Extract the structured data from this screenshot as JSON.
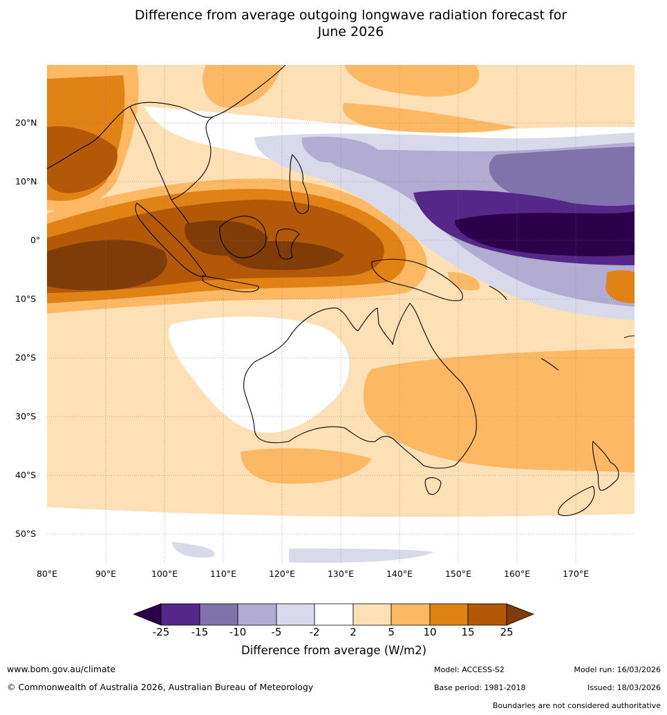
{
  "title": {
    "line1": "Difference from average outgoing longwave radiation forecast for",
    "line2": "June 2026"
  },
  "map": {
    "lat_labels": [
      "20°N",
      "10°N",
      "0°",
      "10°S",
      "20°S",
      "30°S",
      "40°S",
      "50°S"
    ],
    "lon_labels": [
      "80°E",
      "90°E",
      "100°E",
      "110°E",
      "120°E",
      "130°E",
      "140°E",
      "150°E",
      "160°E",
      "170°E"
    ]
  },
  "colorbar": {
    "ticks": [
      "-25",
      "-15",
      "-10",
      "-5",
      "-2",
      "2",
      "5",
      "10",
      "15",
      "25"
    ],
    "colors": {
      "lt_minus25": "#2d004b",
      "m25_m15": "#542788",
      "m15_m10": "#8073ac",
      "m10_m5": "#b2abd2",
      "m5_m2": "#d8daeb",
      "m2_2": "#ffffff",
      "p2_5": "#fee0b6",
      "p5_10": "#fdb863",
      "p10_15": "#e08214",
      "p15_25": "#b35806",
      "gt25": "#7f3b08"
    },
    "label": "Difference from average (W/m2)"
  },
  "footer": {
    "website": "www.bom.gov.au/climate",
    "copyright": "© Commonwealth of Australia 2026, Australian Bureau of Meteorology",
    "model": "Model: ACCESS-S2",
    "base_period": "Base period: 1981-2018",
    "model_run": "Model run: 16/03/2026",
    "issued": "Issued: 18/03/2026",
    "disclaimer": "Boundaries are not considered authoritative"
  }
}
